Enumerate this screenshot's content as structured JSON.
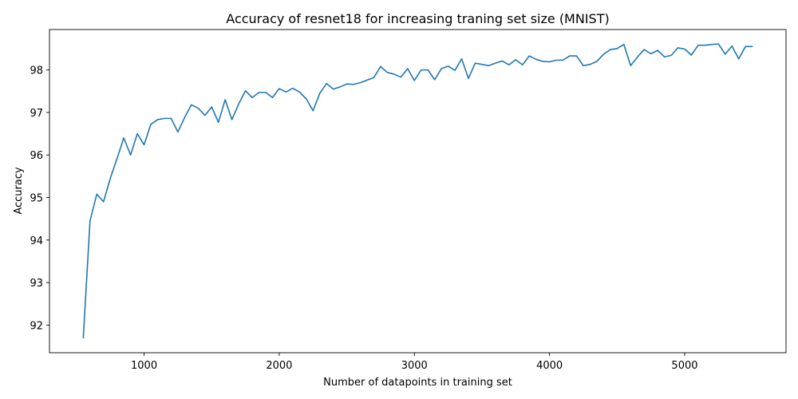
{
  "chart_data": {
    "type": "line",
    "title": "Accuracy of resnet18 for increasing traning set size (MNIST)",
    "xlabel": "Number of datapoints in training set",
    "ylabel": "Accuracy",
    "xlim": [
      300,
      5750
    ],
    "ylim": [
      91.35,
      98.95
    ],
    "xticks": [
      1000,
      2000,
      3000,
      4000,
      5000
    ],
    "yticks": [
      92,
      93,
      94,
      95,
      96,
      97,
      98
    ],
    "grid": false,
    "legend": "none",
    "series": [
      {
        "color": "#1f77b4",
        "x": [
          550,
          600,
          650,
          700,
          750,
          800,
          850,
          900,
          950,
          1000,
          1050,
          1100,
          1150,
          1200,
          1250,
          1300,
          1350,
          1400,
          1450,
          1500,
          1550,
          1600,
          1650,
          1700,
          1750,
          1800,
          1850,
          1900,
          1950,
          2000,
          2050,
          2100,
          2150,
          2200,
          2250,
          2300,
          2350,
          2400,
          2450,
          2500,
          2550,
          2600,
          2650,
          2700,
          2750,
          2800,
          2850,
          2900,
          2950,
          3000,
          3050,
          3100,
          3150,
          3200,
          3250,
          3300,
          3350,
          3400,
          3450,
          3500,
          3550,
          3600,
          3650,
          3700,
          3750,
          3800,
          3850,
          3900,
          3950,
          4000,
          4050,
          4100,
          4150,
          4200,
          4250,
          4300,
          4350,
          4400,
          4450,
          4500,
          4550,
          4600,
          4650,
          4700,
          4750,
          4800,
          4850,
          4900,
          4950,
          5000,
          5050,
          5100,
          5150,
          5200,
          5250,
          5300,
          5350,
          5400,
          5450,
          5500
        ],
        "y": [
          91.7,
          94.45,
          95.08,
          94.9,
          95.45,
          95.92,
          96.4,
          96.0,
          96.5,
          96.24,
          96.72,
          96.83,
          96.86,
          96.86,
          96.54,
          96.88,
          97.18,
          97.1,
          96.93,
          97.13,
          96.77,
          97.3,
          96.83,
          97.2,
          97.51,
          97.35,
          97.47,
          97.47,
          97.35,
          97.56,
          97.48,
          97.57,
          97.48,
          97.32,
          97.04,
          97.45,
          97.68,
          97.55,
          97.6,
          97.67,
          97.66,
          97.7,
          97.76,
          97.82,
          98.08,
          97.94,
          97.9,
          97.83,
          98.03,
          97.75,
          98.0,
          98.0,
          97.77,
          98.03,
          98.09,
          97.99,
          98.26,
          97.8,
          98.16,
          98.13,
          98.1,
          98.16,
          98.21,
          98.12,
          98.24,
          98.12,
          98.33,
          98.25,
          98.2,
          98.19,
          98.23,
          98.23,
          98.33,
          98.33,
          98.1,
          98.13,
          98.2,
          98.37,
          98.48,
          98.5,
          98.6,
          98.1,
          98.3,
          98.48,
          98.38,
          98.46,
          98.31,
          98.34,
          98.52,
          98.49,
          98.35,
          98.58,
          98.58,
          98.6,
          98.61,
          98.37,
          98.56,
          98.26,
          98.55,
          98.55
        ]
      }
    ]
  }
}
